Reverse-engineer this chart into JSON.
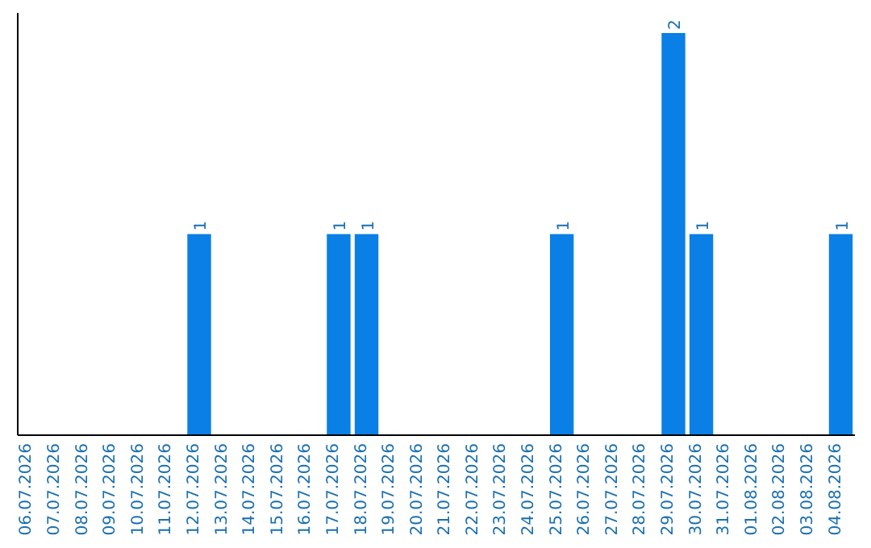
{
  "chart_data": {
    "type": "bar",
    "categories": [
      "06.07.2026",
      "07.07.2026",
      "08.07.2026",
      "09.07.2026",
      "10.07.2026",
      "11.07.2026",
      "12.07.2026",
      "13.07.2026",
      "14.07.2026",
      "15.07.2026",
      "16.07.2026",
      "17.07.2026",
      "18.07.2026",
      "19.07.2026",
      "20.07.2026",
      "21.07.2026",
      "22.07.2026",
      "23.07.2026",
      "24.07.2026",
      "25.07.2026",
      "26.07.2026",
      "27.07.2026",
      "28.07.2026",
      "29.07.2026",
      "30.07.2026",
      "31.07.2026",
      "01.08.2026",
      "02.08.2026",
      "03.08.2026",
      "04.08.2026"
    ],
    "values": [
      0,
      0,
      0,
      0,
      0,
      0,
      1,
      0,
      0,
      0,
      0,
      1,
      1,
      0,
      0,
      0,
      0,
      0,
      0,
      1,
      0,
      0,
      0,
      2,
      1,
      0,
      0,
      0,
      0,
      1
    ],
    "value_labels": [
      null,
      null,
      null,
      null,
      null,
      null,
      "1",
      null,
      null,
      null,
      null,
      "1",
      "1",
      null,
      null,
      null,
      null,
      null,
      null,
      "1",
      null,
      null,
      null,
      "2",
      "1",
      null,
      null,
      null,
      null,
      "1"
    ],
    "color": "#0a7fe6",
    "tick_labels": "x"
  }
}
